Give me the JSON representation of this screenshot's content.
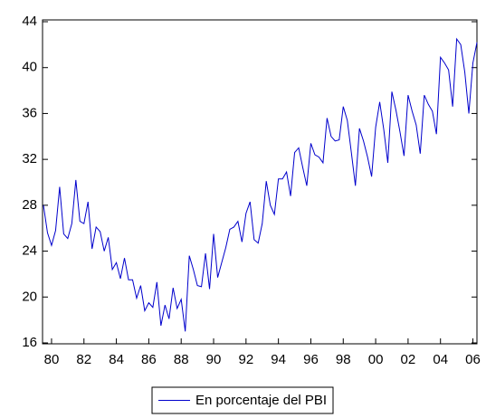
{
  "chart_data": {
    "type": "line",
    "categories": [
      null,
      null,
      "80",
      null,
      null,
      null,
      null,
      null,
      null,
      null,
      "82",
      null,
      null,
      null,
      null,
      null,
      null,
      null,
      "84",
      null,
      null,
      null,
      null,
      null,
      null,
      null,
      "86",
      null,
      null,
      null,
      null,
      null,
      null,
      null,
      "88",
      null,
      null,
      null,
      null,
      null,
      null,
      null,
      "90",
      null,
      null,
      null,
      null,
      null,
      null,
      null,
      "92",
      null,
      null,
      null,
      null,
      null,
      null,
      null,
      "94",
      null,
      null,
      null,
      null,
      null,
      null,
      null,
      "96",
      null,
      null,
      null,
      null,
      null,
      null,
      null,
      "98",
      null,
      null,
      null,
      null,
      null,
      null,
      null,
      "00",
      null,
      null,
      null,
      null,
      null,
      null,
      null,
      "02",
      null,
      null,
      null,
      null,
      null,
      null,
      null,
      "04",
      null,
      null,
      null,
      null,
      null,
      null,
      null,
      "06",
      null
    ],
    "series": [
      {
        "name": "En porcentaje del PBI",
        "color": "#0000cc",
        "values": [
          28.0,
          25.6,
          24.5,
          25.8,
          29.6,
          25.5,
          25.1,
          26.4,
          30.2,
          26.6,
          26.4,
          28.3,
          24.2,
          26.1,
          25.7,
          24.0,
          25.2,
          22.4,
          23.0,
          21.6,
          23.4,
          21.5,
          21.5,
          19.9,
          21.0,
          18.8,
          19.5,
          19.1,
          21.3,
          17.5,
          19.3,
          18.1,
          20.8,
          19.0,
          19.8,
          17.0,
          23.6,
          22.4,
          21.0,
          20.9,
          23.8,
          20.7,
          25.5,
          21.7,
          23.0,
          24.3,
          25.9,
          26.1,
          26.6,
          24.8,
          27.3,
          28.3,
          25.0,
          24.7,
          26.4,
          30.1,
          28.0,
          27.2,
          30.3,
          30.3,
          30.9,
          28.8,
          32.6,
          33.0,
          31.3,
          29.7,
          33.4,
          32.4,
          32.2,
          31.7,
          35.6,
          34.0,
          33.6,
          33.7,
          36.6,
          35.4,
          32.6,
          29.7,
          34.7,
          33.6,
          32.2,
          30.5,
          34.8,
          37.0,
          34.6,
          31.7,
          37.9,
          36.3,
          34.4,
          32.3,
          37.6,
          36.2,
          35.0,
          32.5,
          37.6,
          36.8,
          36.2,
          34.2,
          40.9,
          40.4,
          39.8,
          36.6,
          42.5,
          42.0,
          39.6,
          36.0,
          40.4,
          42.2
        ]
      }
    ],
    "ylim": [
      16,
      44
    ],
    "yticks": [
      16,
      20,
      24,
      28,
      32,
      36,
      40,
      44
    ]
  }
}
